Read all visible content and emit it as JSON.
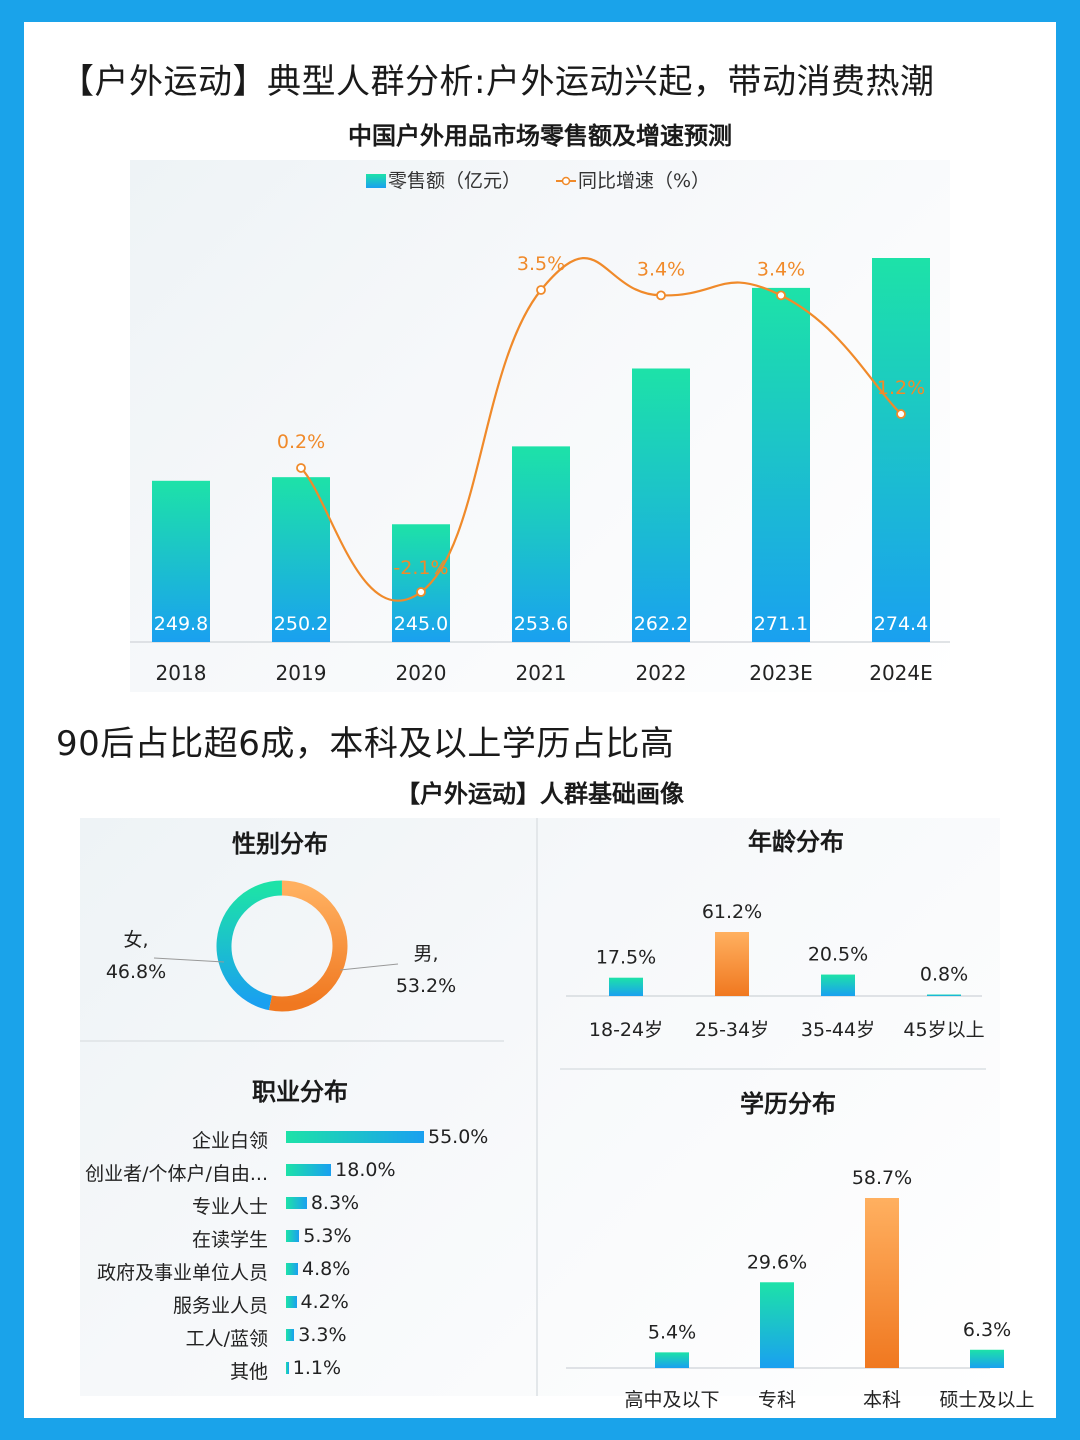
{
  "page": {
    "title": "【户外运动】典型人群分析:户外运动兴起，带动消费热潮",
    "section2_title": "90后占比超6成，本科及以上学历占比高",
    "portrait_title": "【户外运动】人群基础画像"
  },
  "colors": {
    "background": "#1aa3ea",
    "bar_top": "#1de2a8",
    "bar_bottom": "#1aa0f0",
    "line": "#f08a2a",
    "highlight_top": "#ffb060",
    "highlight_bottom": "#f07820"
  },
  "chart_data": [
    {
      "type": "bar",
      "title": "中国户外用品市场零售额及增速预测",
      "categories": [
        "2018",
        "2019",
        "2020",
        "2021",
        "2022",
        "2023E",
        "2024E"
      ],
      "series": [
        {
          "name": "零售额（亿元）",
          "type": "bar",
          "values": [
            249.8,
            250.2,
            245.0,
            253.6,
            262.2,
            271.1,
            274.4
          ],
          "labels": [
            "249.8",
            "250.2",
            "245.0",
            "253.6",
            "262.2",
            "271.1",
            "274.4"
          ]
        },
        {
          "name": "同比增速（%）",
          "type": "line",
          "values": [
            null,
            0.2,
            -2.1,
            3.5,
            3.4,
            3.4,
            1.2
          ],
          "labels": [
            "",
            "0.2%",
            "-2.1%",
            "3.5%",
            "3.4%",
            "3.4%",
            "1.2%"
          ]
        }
      ],
      "legend_position": "top"
    },
    {
      "type": "pie",
      "title": "性别分布",
      "categories": [
        "女",
        "男"
      ],
      "values": [
        46.8,
        53.2
      ],
      "labels": [
        "46.8%",
        "53.2%"
      ]
    },
    {
      "type": "bar",
      "title": "年龄分布",
      "categories": [
        "18-24岁",
        "25-34岁",
        "35-44岁",
        "45岁以上"
      ],
      "values": [
        17.5,
        61.2,
        20.5,
        0.8
      ],
      "labels": [
        "17.5%",
        "61.2%",
        "20.5%",
        "0.8%"
      ]
    },
    {
      "type": "bar",
      "orientation": "horizontal",
      "title": "职业分布",
      "categories": [
        "企业白领",
        "创业者/个体户/自由...",
        "专业人士",
        "在读学生",
        "政府及事业单位人员",
        "服务业人员",
        "工人/蓝领",
        "其他"
      ],
      "values": [
        55.0,
        18.0,
        8.3,
        5.3,
        4.8,
        4.2,
        3.3,
        1.1
      ],
      "labels": [
        "55.0%",
        "18.0%",
        "8.3%",
        "5.3%",
        "4.8%",
        "4.2%",
        "3.3%",
        "1.1%"
      ]
    },
    {
      "type": "bar",
      "title": "学历分布",
      "categories": [
        "高中及以下",
        "专科",
        "本科",
        "硕士及以上"
      ],
      "values": [
        5.4,
        29.6,
        58.7,
        6.3
      ],
      "labels": [
        "5.4%",
        "29.6%",
        "58.7%",
        "6.3%"
      ]
    }
  ]
}
